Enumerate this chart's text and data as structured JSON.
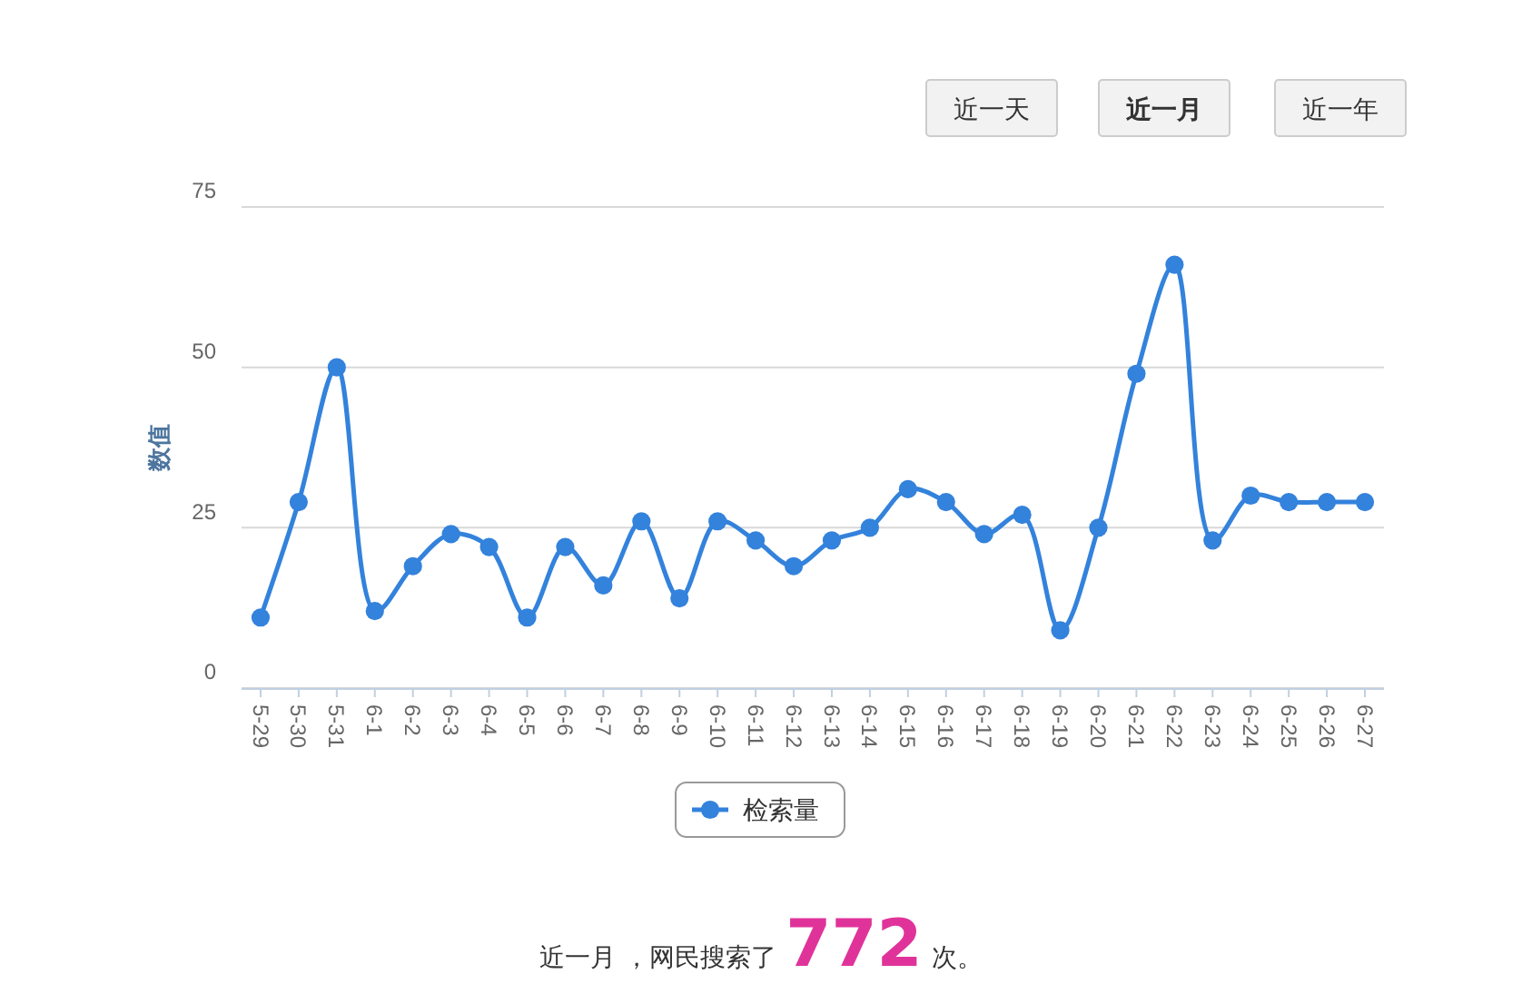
{
  "chart_data": {
    "type": "line",
    "ylabel": "数值",
    "categories": [
      "5-29",
      "5-30",
      "5-31",
      "6-1",
      "6-2",
      "6-3",
      "6-4",
      "6-5",
      "6-6",
      "6-7",
      "6-8",
      "6-9",
      "6-10",
      "6-11",
      "6-12",
      "6-13",
      "6-14",
      "6-15",
      "6-16",
      "6-17",
      "6-18",
      "6-19",
      "6-20",
      "6-21",
      "6-22",
      "6-23",
      "6-24",
      "6-25",
      "6-26",
      "6-27"
    ],
    "series": [
      {
        "name": "检索量",
        "color": "#3382dc",
        "values": [
          11,
          29,
          50,
          12,
          19,
          24,
          22,
          11,
          22,
          16,
          26,
          14,
          26,
          23,
          19,
          23,
          25,
          31,
          29,
          24,
          27,
          9,
          25,
          49,
          66,
          23,
          30,
          29,
          29,
          29
        ]
      }
    ],
    "ylim": [
      0,
      75
    ],
    "yticks": [
      0,
      25,
      50,
      75
    ],
    "grid": "y",
    "legend": "bottom",
    "marker": "circle",
    "line_style": "solid",
    "annotations": [
      "近一天",
      "近一月",
      "近一年",
      "近一月 ，网民搜索了772次。"
    ]
  }
}
